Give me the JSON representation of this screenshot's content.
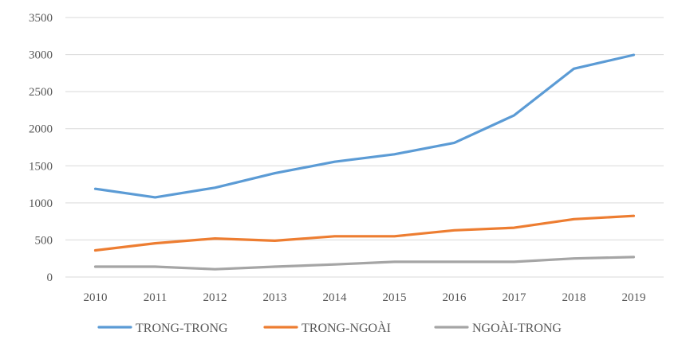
{
  "chart_data": {
    "type": "line",
    "title": "",
    "xlabel": "",
    "ylabel": "",
    "x": [
      "2010",
      "2011",
      "2012",
      "2013",
      "2014",
      "2015",
      "2016",
      "2017",
      "2018",
      "2019"
    ],
    "ylim": [
      0,
      3500
    ],
    "yticks": [
      "0",
      "500",
      "1000",
      "1500",
      "2000",
      "2500",
      "3000",
      "3500"
    ],
    "grid": true,
    "legend_position": "bottom",
    "series": [
      {
        "name": "TRONG-TRONG",
        "color": "#5b9bd5",
        "values": [
          1190,
          1075,
          1205,
          1400,
          1555,
          1655,
          1810,
          2180,
          2810,
          2995
        ]
      },
      {
        "name": "TRONG-NGOÀI",
        "color": "#ed7d31",
        "values": [
          360,
          455,
          520,
          490,
          550,
          550,
          630,
          665,
          780,
          825
        ]
      },
      {
        "name": "NGOÀI-TRONG",
        "color": "#a5a5a5",
        "values": [
          140,
          140,
          105,
          140,
          170,
          205,
          205,
          205,
          250,
          270
        ]
      }
    ]
  }
}
